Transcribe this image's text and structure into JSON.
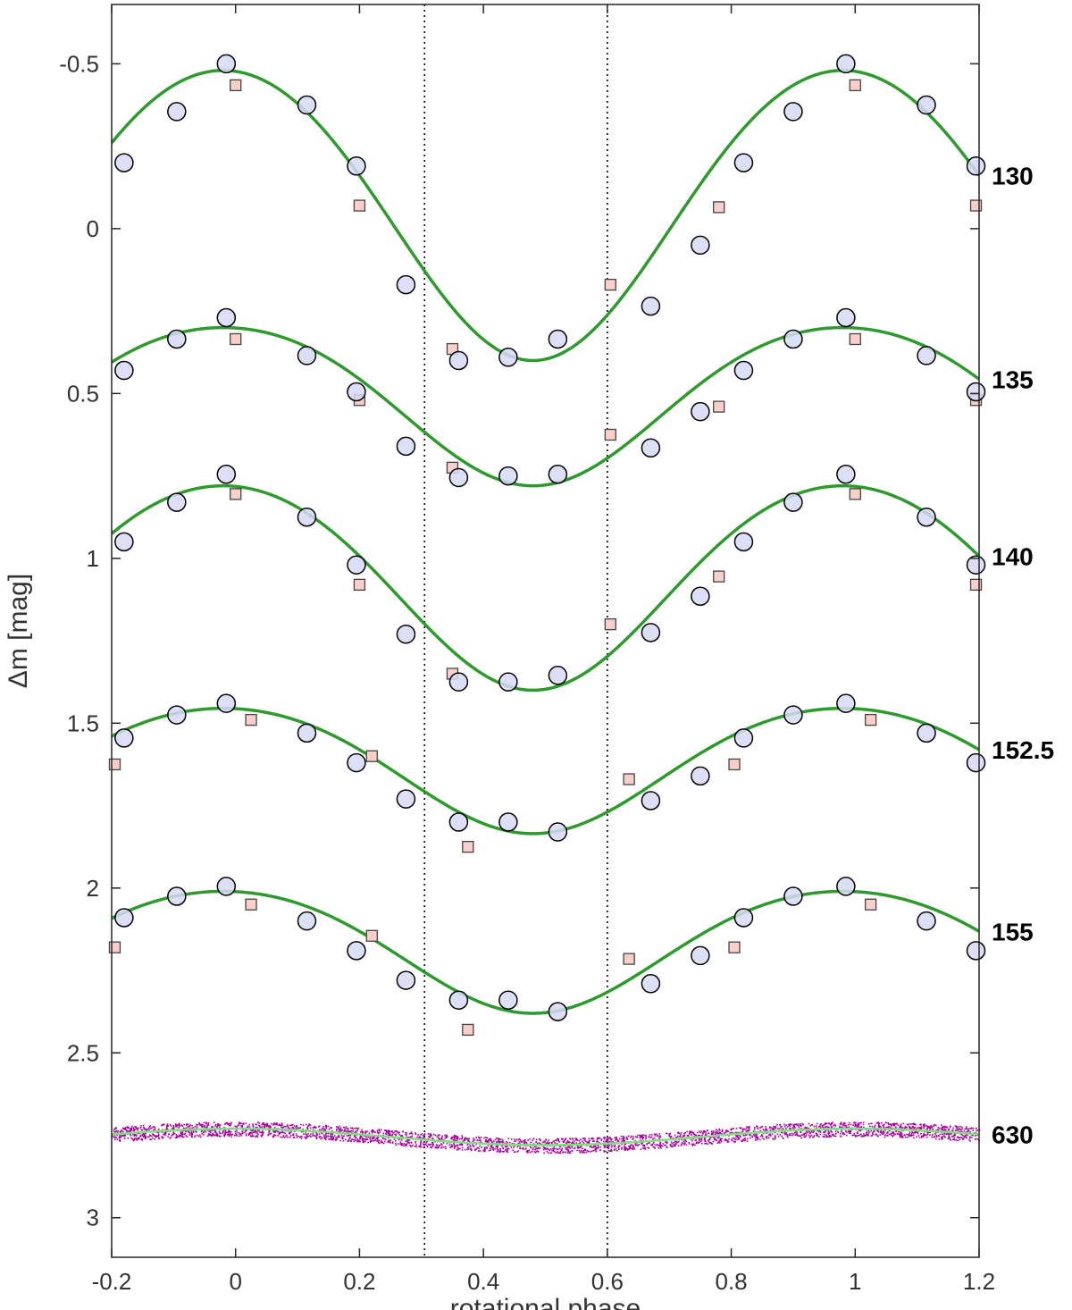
{
  "chart_data": {
    "type": "scatter",
    "xlabel": "rotational phase",
    "ylabel": "Δm  [mag]",
    "xlim": [
      -0.2,
      1.2
    ],
    "ylim": [
      3.12,
      -0.68
    ],
    "y_axis_inverted": true,
    "xticks": [
      -0.2,
      0,
      0.2,
      0.4,
      0.6,
      0.8,
      1,
      1.2
    ],
    "xtick_labels": [
      "-0.2",
      "0",
      "0.2",
      "0.4",
      "0.6",
      "0.8",
      "1",
      "1.2"
    ],
    "yticks": [
      -0.5,
      0,
      0.5,
      1,
      1.5,
      2,
      2.5,
      3
    ],
    "ytick_labels": [
      "-0.5",
      "0",
      "0.5",
      "1",
      "1.5",
      "2",
      "2.5",
      "3"
    ],
    "vertical_reference_lines": [
      0.305,
      0.6
    ],
    "colors": {
      "circle_fill": "#d6d9f5",
      "circle_edge": "#000000",
      "square_fill": "#f9cfc9",
      "square_edge": "#444444",
      "fit_line": "#2e9a2e",
      "photometry_dots": "#a8009e",
      "photometry_fit": "#7fe07f"
    },
    "series": [
      {
        "name": "130",
        "fit": {
          "offset": -0.06,
          "a1": -0.44,
          "phi1": 0.98,
          "a2": 0.02,
          "phi2": 0.98
        },
        "circles": [
          [
            -0.18,
            -0.2
          ],
          [
            -0.095,
            -0.355
          ],
          [
            -0.015,
            -0.5
          ],
          [
            0.115,
            -0.375
          ],
          [
            0.195,
            -0.19
          ],
          [
            0.275,
            0.17
          ],
          [
            0.36,
            0.4
          ],
          [
            0.44,
            0.39
          ],
          [
            0.52,
            0.335
          ],
          [
            0.67,
            0.235
          ],
          [
            0.75,
            0.05
          ],
          [
            0.82,
            -0.2
          ],
          [
            0.9,
            -0.355
          ],
          [
            0.985,
            -0.5
          ],
          [
            1.115,
            -0.375
          ],
          [
            1.195,
            -0.19
          ]
        ],
        "squares": [
          [
            0.0,
            -0.435
          ],
          [
            0.2,
            -0.07
          ],
          [
            0.35,
            0.365
          ],
          [
            0.605,
            0.17
          ],
          [
            0.78,
            -0.065
          ],
          [
            1.0,
            -0.435
          ],
          [
            1.195,
            -0.07
          ]
        ]
      },
      {
        "name": "135",
        "fit": {
          "offset": 0.52,
          "a1": -0.24,
          "phi1": 0.98,
          "a2": 0.02,
          "phi2": 0.98
        },
        "circles": [
          [
            -0.18,
            0.43
          ],
          [
            -0.095,
            0.335
          ],
          [
            -0.015,
            0.27
          ],
          [
            0.115,
            0.385
          ],
          [
            0.195,
            0.495
          ],
          [
            0.275,
            0.66
          ],
          [
            0.36,
            0.755
          ],
          [
            0.44,
            0.75
          ],
          [
            0.52,
            0.745
          ],
          [
            0.67,
            0.665
          ],
          [
            0.75,
            0.555
          ],
          [
            0.82,
            0.43
          ],
          [
            0.9,
            0.335
          ],
          [
            0.985,
            0.27
          ],
          [
            1.115,
            0.385
          ],
          [
            1.195,
            0.495
          ]
        ],
        "squares": [
          [
            0.0,
            0.335
          ],
          [
            0.2,
            0.52
          ],
          [
            0.35,
            0.725
          ],
          [
            0.605,
            0.625
          ],
          [
            0.78,
            0.54
          ],
          [
            1.0,
            0.335
          ],
          [
            1.195,
            0.52
          ]
        ]
      },
      {
        "name": "140",
        "fit": {
          "offset": 1.07,
          "a1": -0.31,
          "phi1": 0.98,
          "a2": 0.02,
          "phi2": 0.98
        },
        "circles": [
          [
            -0.18,
            0.95
          ],
          [
            -0.095,
            0.83
          ],
          [
            -0.015,
            0.745
          ],
          [
            0.115,
            0.875
          ],
          [
            0.195,
            1.02
          ],
          [
            0.275,
            1.23
          ],
          [
            0.36,
            1.375
          ],
          [
            0.44,
            1.375
          ],
          [
            0.52,
            1.355
          ],
          [
            0.67,
            1.225
          ],
          [
            0.75,
            1.115
          ],
          [
            0.82,
            0.95
          ],
          [
            0.9,
            0.83
          ],
          [
            0.985,
            0.745
          ],
          [
            1.115,
            0.875
          ],
          [
            1.195,
            1.02
          ]
        ],
        "squares": [
          [
            0.0,
            0.805
          ],
          [
            0.2,
            1.08
          ],
          [
            0.35,
            1.35
          ],
          [
            0.605,
            1.2
          ],
          [
            0.78,
            1.055
          ],
          [
            1.0,
            0.805
          ],
          [
            1.195,
            1.08
          ]
        ]
      },
      {
        "name": "152.5",
        "fit": {
          "offset": 1.63,
          "a1": -0.19,
          "phi1": 0.98,
          "a2": 0.015,
          "phi2": 0.98
        },
        "circles": [
          [
            -0.18,
            1.545
          ],
          [
            -0.095,
            1.475
          ],
          [
            -0.015,
            1.44
          ],
          [
            0.115,
            1.53
          ],
          [
            0.195,
            1.62
          ],
          [
            0.275,
            1.73
          ],
          [
            0.36,
            1.8
          ],
          [
            0.44,
            1.8
          ],
          [
            0.52,
            1.83
          ],
          [
            0.67,
            1.735
          ],
          [
            0.75,
            1.66
          ],
          [
            0.82,
            1.545
          ],
          [
            0.9,
            1.475
          ],
          [
            0.985,
            1.44
          ],
          [
            1.115,
            1.53
          ],
          [
            1.195,
            1.62
          ]
        ],
        "squares": [
          [
            -0.195,
            1.625
          ],
          [
            0.025,
            1.49
          ],
          [
            0.22,
            1.6
          ],
          [
            0.375,
            1.875
          ],
          [
            0.635,
            1.67
          ],
          [
            0.805,
            1.625
          ],
          [
            1.025,
            1.49
          ]
        ]
      },
      {
        "name": "155",
        "fit": {
          "offset": 2.18,
          "a1": -0.185,
          "phi1": 0.98,
          "a2": 0.015,
          "phi2": 0.98
        },
        "circles": [
          [
            -0.18,
            2.09
          ],
          [
            -0.095,
            2.025
          ],
          [
            -0.015,
            1.995
          ],
          [
            0.115,
            2.1
          ],
          [
            0.195,
            2.19
          ],
          [
            0.275,
            2.28
          ],
          [
            0.36,
            2.34
          ],
          [
            0.44,
            2.34
          ],
          [
            0.52,
            2.375
          ],
          [
            0.67,
            2.29
          ],
          [
            0.75,
            2.205
          ],
          [
            0.82,
            2.09
          ],
          [
            0.9,
            2.025
          ],
          [
            0.985,
            1.995
          ],
          [
            1.115,
            2.1
          ],
          [
            1.195,
            2.19
          ]
        ],
        "squares": [
          [
            -0.195,
            2.18
          ],
          [
            0.025,
            2.05
          ],
          [
            0.22,
            2.145
          ],
          [
            0.375,
            2.43
          ],
          [
            0.635,
            2.215
          ],
          [
            0.805,
            2.18
          ],
          [
            1.025,
            2.05
          ]
        ]
      },
      {
        "name": "630",
        "fit": {
          "offset": 2.755,
          "a1": 0.025,
          "phi1": 0.5,
          "a2": 0.0,
          "phi2": 0.0
        },
        "scatter_halfwidth": 0.022
      }
    ]
  }
}
